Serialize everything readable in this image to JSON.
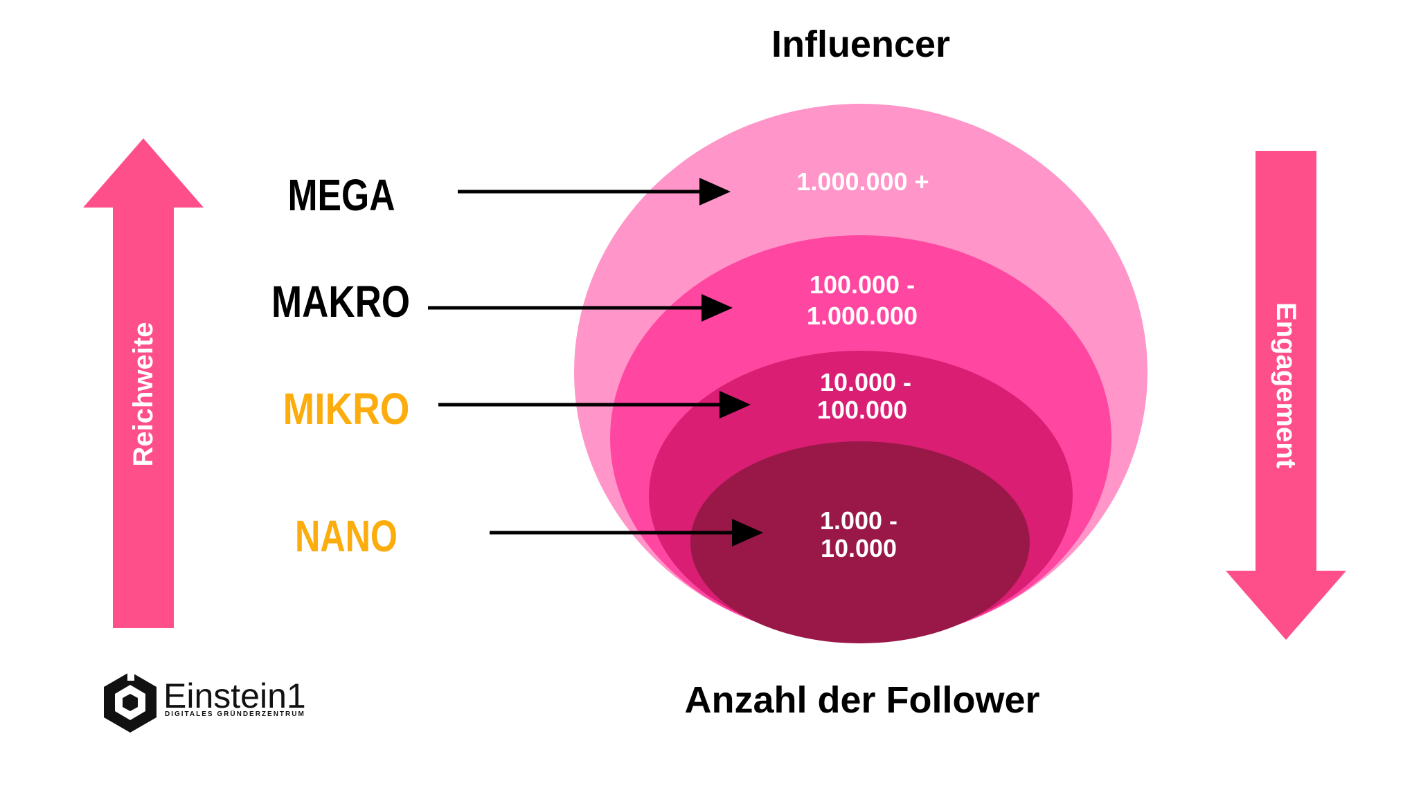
{
  "title": "Influencer",
  "footer_label": "Anzahl der Follower",
  "axes": {
    "left": "Reichweite",
    "right": "Engagement"
  },
  "tiers": [
    {
      "name": "MEGA",
      "range_line1": "1.000.000 +",
      "range_line2": ""
    },
    {
      "name": "MAKRO",
      "range_line1": "100.000 -",
      "range_line2": "1.000.000"
    },
    {
      "name": "MIKRO",
      "range_line1": "10.000 -",
      "range_line2": "100.000"
    },
    {
      "name": "NANO",
      "range_line1": "1.000 -",
      "range_line2": "10.000"
    }
  ],
  "brand": {
    "name": "Einstein1",
    "tagline": "DIGITALES GRÜNDERZENTRUM"
  },
  "colors": {
    "mega_ellipse": "#ff95c8",
    "makro_ellipse": "#ff46a0",
    "mikro_ellipse": "#d91e73",
    "nano_ellipse": "#9a1848",
    "arrow_pink": "#ff4f8b",
    "tier_dark": "#000000",
    "tier_accent": "#fcac0c"
  }
}
